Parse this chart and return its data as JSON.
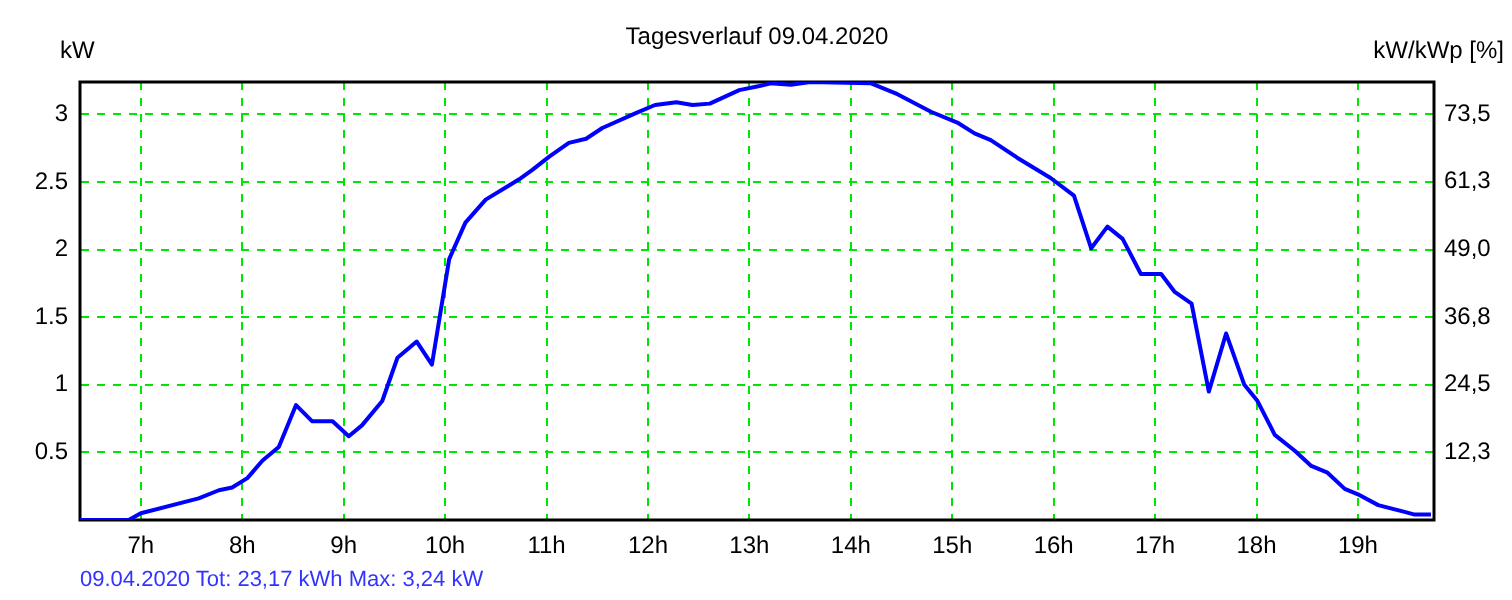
{
  "chart_data": {
    "type": "line",
    "title": "Tagesverlauf 09.04.2020",
    "ylabel": "kW",
    "y2label": "kW/kWp [%]",
    "annotations": [
      "09.04.2020 Tot: 23,17 kWh Max: 3,24 kW"
    ],
    "x": [
      6.4,
      6.88,
      7.0,
      7.57,
      7.77,
      7.9,
      8.05,
      8.2,
      8.36,
      8.53,
      8.69,
      8.89,
      9.05,
      9.18,
      9.38,
      9.53,
      9.72,
      9.87,
      10.04,
      10.2,
      10.4,
      10.73,
      10.86,
      11.03,
      11.22,
      11.39,
      11.55,
      11.88,
      12.07,
      12.28,
      12.44,
      12.61,
      12.9,
      13.1,
      13.21,
      13.41,
      13.6,
      14.2,
      14.46,
      14.79,
      15.05,
      15.22,
      15.38,
      15.64,
      15.97,
      16.2,
      16.37,
      16.53,
      16.68,
      16.86,
      17.06,
      17.19,
      17.36,
      17.53,
      17.7,
      17.88,
      18.01,
      18.18,
      18.38,
      18.54,
      18.7,
      18.87,
      19.0,
      19.2,
      19.46,
      19.56,
      19.72
    ],
    "series": [
      {
        "color": "#0000ff",
        "values": [
          0.0,
          0.0,
          0.05,
          0.16,
          0.22,
          0.24,
          0.31,
          0.44,
          0.54,
          0.85,
          0.73,
          0.73,
          0.62,
          0.7,
          0.88,
          1.2,
          1.32,
          1.15,
          1.93,
          2.2,
          2.37,
          2.52,
          2.59,
          2.69,
          2.79,
          2.82,
          2.9,
          3.01,
          3.07,
          3.09,
          3.07,
          3.08,
          3.18,
          3.21,
          3.23,
          3.22,
          3.24,
          3.23,
          3.15,
          3.02,
          2.94,
          2.86,
          2.81,
          2.68,
          2.53,
          2.4,
          2.01,
          2.17,
          2.08,
          1.82,
          1.82,
          1.69,
          1.6,
          0.95,
          1.38,
          1.0,
          0.88,
          0.63,
          0.51,
          0.4,
          0.35,
          0.23,
          0.19,
          0.11,
          0.06,
          0.04,
          0.04
        ]
      }
    ],
    "xlim": [
      6.4,
      19.75
    ],
    "xticks": [
      {
        "value": 7,
        "label": "7h"
      },
      {
        "value": 8,
        "label": "8h"
      },
      {
        "value": 9,
        "label": "9h"
      },
      {
        "value": 10,
        "label": "10h"
      },
      {
        "value": 11,
        "label": "11h"
      },
      {
        "value": 12,
        "label": "12h"
      },
      {
        "value": 13,
        "label": "13h"
      },
      {
        "value": 14,
        "label": "14h"
      },
      {
        "value": 15,
        "label": "15h"
      },
      {
        "value": 16,
        "label": "16h"
      },
      {
        "value": 17,
        "label": "17h"
      },
      {
        "value": 18,
        "label": "18h"
      },
      {
        "value": 19,
        "label": "19h"
      }
    ],
    "ylim": [
      0,
      3.24
    ],
    "yticks": [
      0.5,
      1,
      1.5,
      2,
      2.5,
      3
    ],
    "y2lim": [
      0,
      79.4
    ],
    "y2ticks": [
      {
        "value": 12.3,
        "label": "12,3"
      },
      {
        "value": 24.5,
        "label": "24,5"
      },
      {
        "value": 36.8,
        "label": "36,8"
      },
      {
        "value": 49.0,
        "label": "49,0"
      },
      {
        "value": 61.3,
        "label": "61,3"
      },
      {
        "value": 73.5,
        "label": "73,5"
      }
    ],
    "grid": true,
    "legend": false,
    "marker": "none",
    "line_style": "solid"
  }
}
